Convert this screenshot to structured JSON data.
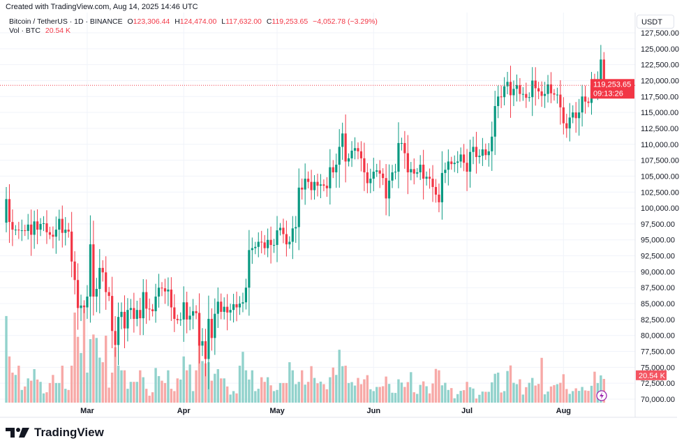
{
  "header": {
    "created_text": "Created with TradingView.com, Aug 14, 2025 14:46 UTC",
    "symbol": "Bitcoin / TetherUS · 1D · BINANCE",
    "open_label": "O",
    "open": "123,306.44",
    "high_label": "H",
    "high": "124,474.00",
    "low_label": "L",
    "low": "117,632.00",
    "close_label": "C",
    "close": "119,253.65",
    "change": "−4,052.78 (−3.29%)",
    "vol_label": "Vol · BTC",
    "vol": "20.54 K"
  },
  "price_axis": {
    "currency": "USDT",
    "ticks": [
      "127,500.00",
      "125,000.00",
      "122,500.00",
      "120,000.00",
      "117,500.00",
      "115,000.00",
      "112,500.00",
      "110,000.00",
      "107,500.00",
      "105,000.00",
      "102,500.00",
      "100,000.00",
      "97,500.00",
      "95,000.00",
      "92,500.00",
      "90,000.00",
      "87,500.00",
      "85,000.00",
      "82,500.00",
      "80,000.00",
      "77,500.00",
      "75,000.00",
      "72,500.00",
      "70,000.00"
    ],
    "current_price": "119,253.65",
    "countdown": "09:13:26",
    "current_volume": "20.54 K"
  },
  "time_axis": {
    "ticks": [
      "Mar",
      "Apr",
      "May",
      "Jun",
      "Jul",
      "Aug"
    ]
  },
  "branding": {
    "logo_text": "TradingView"
  },
  "colors": {
    "up": "#089981",
    "down": "#F23645",
    "vol_up": "#92D2CC",
    "vol_down": "#F7A9A7",
    "grid": "#f0f3fa"
  },
  "chart_data": {
    "type": "candlestick",
    "interval": "1D",
    "ylim": [
      70000,
      127500
    ],
    "grid": true,
    "x_start": "2025-02-03",
    "x_end": "2025-08-14",
    "first_open": 97700,
    "last_candle": {
      "open": 123306.44,
      "high": 124474.0,
      "low": 117632.0,
      "close": 119253.65
    },
    "closes": [
      101400,
      97800,
      96600,
      96600,
      96500,
      96500,
      96400,
      97400,
      95800,
      97900,
      96600,
      97500,
      97600,
      96200,
      95800,
      95500,
      96600,
      98300,
      96100,
      96600,
      96300,
      91600,
      88700,
      84300,
      84700,
      84400,
      86100,
      94300,
      86100,
      87300,
      90600,
      89900,
      86800,
      86200,
      80700,
      78500,
      82900,
      83700,
      81100,
      84000,
      84300,
      82600,
      84000,
      82700,
      86800,
      84200,
      84100,
      83800,
      86100,
      87500,
      87400,
      86900,
      87200,
      84400,
      82600,
      82400,
      82500,
      85200,
      82500,
      83100,
      83800,
      83500,
      78400,
      79100,
      76300,
      82600,
      79600,
      83400,
      85300,
      83700,
      84500,
      83600,
      84000,
      84900,
      84400,
      85000,
      85200,
      87500,
      93400,
      93700,
      93900,
      94700,
      94600,
      93700,
      95000,
      94200,
      94200,
      96500,
      96900,
      95900,
      94300,
      94700,
      96800,
      97000,
      103200,
      102900,
      104600,
      104100,
      102800,
      104100,
      103500,
      103700,
      103500,
      103100,
      106400,
      105600,
      106800,
      109600,
      111700,
      107300,
      107800,
      109000,
      109400,
      108900,
      107800,
      105600,
      103900,
      104600,
      105700,
      105900,
      105400,
      104700,
      101500,
      104300,
      105600,
      105700,
      110200,
      110200,
      108600,
      105600,
      106100,
      105400,
      105600,
      106800,
      104600,
      104900,
      104600,
      103300,
      102100,
      100900,
      105500,
      106000,
      107300,
      106900,
      107100,
      107300,
      108400,
      107100,
      105700,
      108800,
      109600,
      108000,
      108200,
      109200,
      108300,
      108900,
      111200,
      116000,
      117500,
      117400,
      119100,
      119800,
      117700,
      118700,
      119300,
      117900,
      117900,
      117300,
      117400,
      120000,
      118800,
      118300,
      117600,
      117900,
      119400,
      118000,
      117800,
      117800,
      115800,
      113300,
      112500,
      114200,
      115000,
      114100,
      115000,
      117500,
      116700,
      116500,
      119300,
      118700,
      120200,
      123306.44,
      119253.65
    ],
    "volumes_k": [
      75,
      40,
      26,
      24,
      32,
      11,
      14,
      21,
      19,
      29,
      20,
      18,
      8,
      9,
      17,
      24,
      17,
      17,
      32,
      12,
      11,
      32,
      78,
      57,
      43,
      82,
      26,
      55,
      59,
      56,
      39,
      35,
      58,
      13,
      26,
      48,
      32,
      28,
      28,
      12,
      18,
      18,
      18,
      28,
      22,
      12,
      6,
      9,
      30,
      23,
      19,
      17,
      28,
      12,
      10,
      21,
      20,
      40,
      28,
      33,
      10,
      28,
      78,
      36,
      34,
      35,
      19,
      25,
      29,
      21,
      21,
      14,
      7,
      10,
      8,
      32,
      44,
      28,
      20,
      28,
      10,
      12,
      22,
      18,
      22,
      15,
      10,
      11,
      17,
      17,
      17,
      35,
      28,
      16,
      18,
      28,
      15.6,
      18,
      31.6,
      21.4,
      16.8,
      18.2,
      16,
      11.6,
      22,
      30.4,
      24,
      45.8,
      31.6,
      32,
      17,
      17.8,
      14.8,
      21.4,
      16,
      20.2,
      23.8,
      11.6,
      10,
      13.6,
      13.6,
      14.2,
      22.6,
      16.2,
      8.6,
      8.4,
      20.2,
      17.4,
      13.6,
      17.8,
      26.4,
      9,
      7.6,
      15.4,
      18.4,
      14.2,
      8,
      16.6,
      29.2,
      28,
      15,
      17.2,
      11,
      12.6,
      3.8,
      7.4,
      10.2,
      10.8,
      18,
      13.4,
      12.2,
      3.6,
      6.8,
      9.6,
      9.4,
      9.4,
      17.6,
      25,
      26,
      8.8,
      10,
      27.4,
      32.2,
      17.2,
      16,
      20.2,
      7,
      13.4,
      17.2,
      21.4,
      14.8,
      16.2,
      38.8,
      7.2,
      9.6,
      14,
      15.2,
      16,
      17.2,
      24.6,
      11.8,
      7.6,
      10,
      12.4,
      10.2,
      13.6,
      10.6,
      10.2,
      14.6,
      26.8,
      17,
      23.6,
      20.54
    ]
  }
}
